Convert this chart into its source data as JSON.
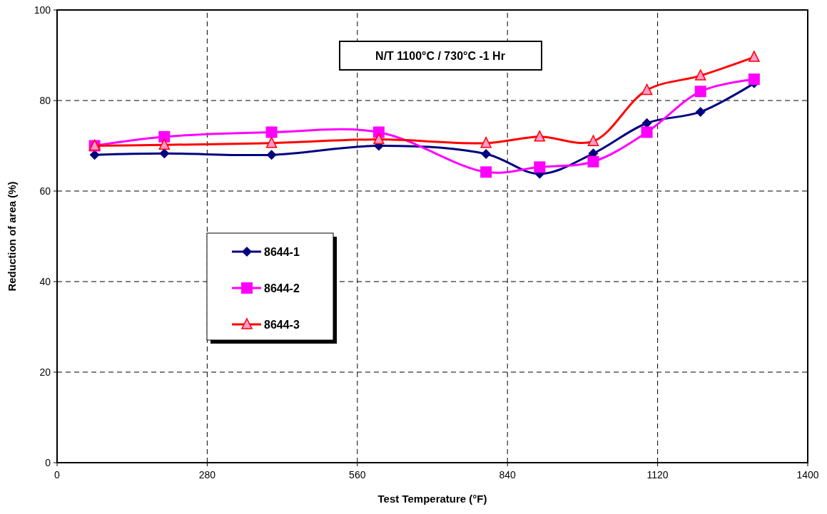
{
  "chart_data": {
    "type": "line",
    "xlabel": "Test Temperature (°F)",
    "ylabel": "Reduction of area (%)",
    "annotations": [
      "N/T 1100°C / 730°C -1 Hr"
    ],
    "x": [
      70,
      200,
      400,
      600,
      800,
      900,
      1000,
      1100,
      1200,
      1300
    ],
    "series": [
      {
        "name": "8644-1",
        "color": "#000080",
        "marker": "diamond",
        "values": [
          68,
          68.3,
          68,
          70,
          68.2,
          63.8,
          68.3,
          75,
          77.5,
          83.8
        ]
      },
      {
        "name": "8644-2",
        "color": "#ff00ff",
        "marker": "square",
        "values": [
          70,
          72,
          73,
          73,
          64.2,
          65.3,
          66.5,
          73,
          82,
          84.7
        ]
      },
      {
        "name": "8644-3",
        "color": "#ff0000",
        "marker": "triangle",
        "values": [
          70,
          70.2,
          70.6,
          71.4,
          70.6,
          72,
          71,
          82.3,
          85.5,
          89.6
        ]
      }
    ],
    "xlim": [
      0,
      1400
    ],
    "xticks": [
      0,
      280,
      560,
      840,
      1120,
      1400
    ],
    "ylim": [
      0,
      100
    ],
    "yticks": [
      0,
      20,
      40,
      60,
      80,
      100
    ],
    "grid": true,
    "legend": "left",
    "line_style": "solid"
  }
}
